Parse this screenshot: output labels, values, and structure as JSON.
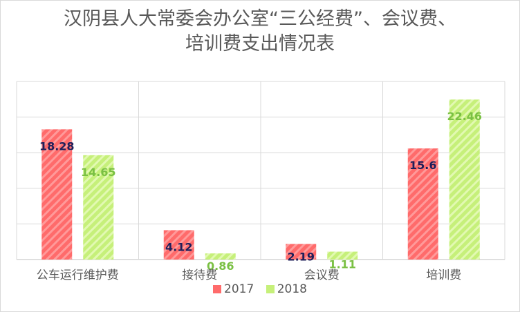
{
  "chart_data": {
    "type": "bar",
    "title": "汉阴县人大常委会办公室“三公经费”、会议费、培训费支出情况表",
    "title_lines": [
      "汉阴县人大常委会办公室“三公经费”、会议费、",
      "培训费支出情况表"
    ],
    "categories": [
      "公车运行维护费",
      "接待费",
      "会议费",
      "培训费"
    ],
    "series": [
      {
        "name": "2017",
        "values": [
          18.28,
          4.12,
          2.19,
          15.6
        ],
        "color": "#ff6b6b",
        "label_color": "#1f1f5a"
      },
      {
        "name": "2018",
        "values": [
          14.65,
          0.86,
          1.11,
          22.46
        ],
        "color": "#c6f07a",
        "label_color": "#7ac043"
      }
    ],
    "ylim": [
      0,
      25
    ],
    "grid": true,
    "legend_position": "bottom",
    "xlabel": "",
    "ylabel": ""
  }
}
